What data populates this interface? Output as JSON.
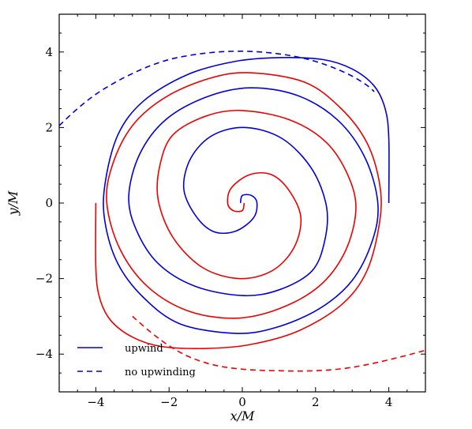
{
  "chart_data": {
    "type": "line",
    "title": "",
    "xlabel": "x/M",
    "ylabel": "y/M",
    "xlim": [
      -5,
      5
    ],
    "ylim": [
      -5,
      5
    ],
    "xticks": [
      -4,
      -2,
      0,
      2,
      4
    ],
    "yticks": [
      -4,
      -2,
      0,
      2,
      4
    ],
    "xtick_labels": [
      "−4",
      "−2",
      "0",
      "2",
      "4"
    ],
    "ytick_labels": [
      "−4",
      "−2",
      "0",
      "2",
      "4"
    ],
    "grid": false,
    "legend_position": "bottom-left",
    "legend": [
      {
        "label": "upwind",
        "linestyle": "solid",
        "color": "#0000dd"
      },
      {
        "label": "no upwinding",
        "linestyle": "dashed",
        "color": "#0000dd"
      }
    ],
    "series": [
      {
        "color": "#0000dd",
        "linestyle": "solid",
        "x": [
          4.0,
          4.0,
          3.9,
          3.6,
          3.0,
          2.2,
          1.0,
          -0.2,
          -1.5,
          -2.7,
          -3.4,
          -3.75,
          -3.75,
          -3.4,
          -2.7,
          -1.7,
          -0.2,
          0.9,
          2.1,
          3.0,
          3.55,
          3.7,
          3.35,
          2.6,
          1.5,
          0.2,
          -1.0,
          -2.1,
          -2.8,
          -3.1,
          -2.9,
          -2.3,
          -1.3,
          0.0,
          1.0,
          1.9,
          2.25,
          2.3,
          1.9,
          1.1,
          0.1,
          -0.8,
          -1.4,
          -1.6,
          -1.3,
          -0.8,
          -0.2,
          0.3,
          0.4,
          0.25,
          0.0,
          -0.05
        ],
        "y": [
          0.0,
          1.7,
          2.5,
          3.1,
          3.55,
          3.8,
          3.85,
          3.75,
          3.4,
          2.7,
          1.8,
          0.5,
          -0.5,
          -1.6,
          -2.5,
          -3.2,
          -3.45,
          -3.3,
          -2.8,
          -2.05,
          -1.0,
          0.0,
          1.2,
          2.2,
          2.85,
          3.05,
          2.8,
          2.2,
          1.3,
          0.2,
          -0.7,
          -1.6,
          -2.2,
          -2.45,
          -2.3,
          -1.8,
          -1.0,
          -0.1,
          0.9,
          1.7,
          2.0,
          1.8,
          1.2,
          0.4,
          -0.3,
          -0.75,
          -0.75,
          -0.4,
          0.0,
          0.2,
          0.2,
          0.0
        ]
      },
      {
        "color": "#0000dd",
        "linestyle": "dashed",
        "x": [
          -5.0,
          -4.5,
          -4.0,
          -3.5,
          -3.0,
          -2.5,
          -2.0,
          -1.5,
          -1.0,
          -0.5,
          0.0,
          0.5,
          1.0,
          1.5,
          2.0,
          2.5,
          3.0,
          3.4,
          3.6
        ],
        "y": [
          2.05,
          2.5,
          2.88,
          3.18,
          3.43,
          3.64,
          3.8,
          3.9,
          3.97,
          4.01,
          4.02,
          4.0,
          3.95,
          3.87,
          3.75,
          3.58,
          3.36,
          3.12,
          2.95
        ]
      },
      {
        "color": "#ee0000",
        "linestyle": "solid",
        "x": [
          -4.0,
          -4.0,
          -3.9,
          -3.6,
          -3.0,
          -2.2,
          -1.0,
          0.2,
          1.5,
          2.7,
          3.4,
          3.75,
          3.75,
          3.4,
          2.7,
          1.7,
          0.2,
          -0.9,
          -2.1,
          -3.0,
          -3.55,
          -3.7,
          -3.35,
          -2.6,
          -1.5,
          -0.2,
          1.0,
          2.1,
          2.8,
          3.1,
          2.9,
          2.3,
          1.3,
          0.0,
          -1.0,
          -1.9,
          -2.25,
          -2.3,
          -1.9,
          -1.1,
          -0.1,
          0.8,
          1.4,
          1.6,
          1.3,
          0.8,
          0.2,
          -0.3,
          -0.4,
          -0.25,
          0.0,
          0.05
        ],
        "y": [
          0.0,
          -1.7,
          -2.5,
          -3.1,
          -3.55,
          -3.8,
          -3.85,
          -3.75,
          -3.4,
          -2.7,
          -1.8,
          -0.5,
          0.5,
          1.6,
          2.5,
          3.2,
          3.45,
          3.3,
          2.8,
          2.05,
          1.0,
          0.0,
          -1.2,
          -2.2,
          -2.85,
          -3.05,
          -2.8,
          -2.2,
          -1.3,
          -0.2,
          0.7,
          1.6,
          2.2,
          2.45,
          2.3,
          1.8,
          1.0,
          0.1,
          -0.9,
          -1.7,
          -2.0,
          -1.8,
          -1.2,
          -0.4,
          0.3,
          0.75,
          0.75,
          0.4,
          0.0,
          -0.2,
          -0.2,
          0.0
        ]
      },
      {
        "color": "#ee0000",
        "linestyle": "dashed",
        "x": [
          -3.0,
          -2.5,
          -2.0,
          -1.5,
          -1.0,
          -0.5,
          0.0,
          0.5,
          1.0,
          1.5,
          2.0,
          2.5,
          3.0,
          3.5,
          4.0,
          4.5,
          5.0
        ],
        "y": [
          -3.0,
          -3.42,
          -3.78,
          -4.05,
          -4.23,
          -4.34,
          -4.4,
          -4.43,
          -4.44,
          -4.45,
          -4.44,
          -4.41,
          -4.35,
          -4.26,
          -4.15,
          -4.03,
          -3.9
        ]
      }
    ]
  }
}
